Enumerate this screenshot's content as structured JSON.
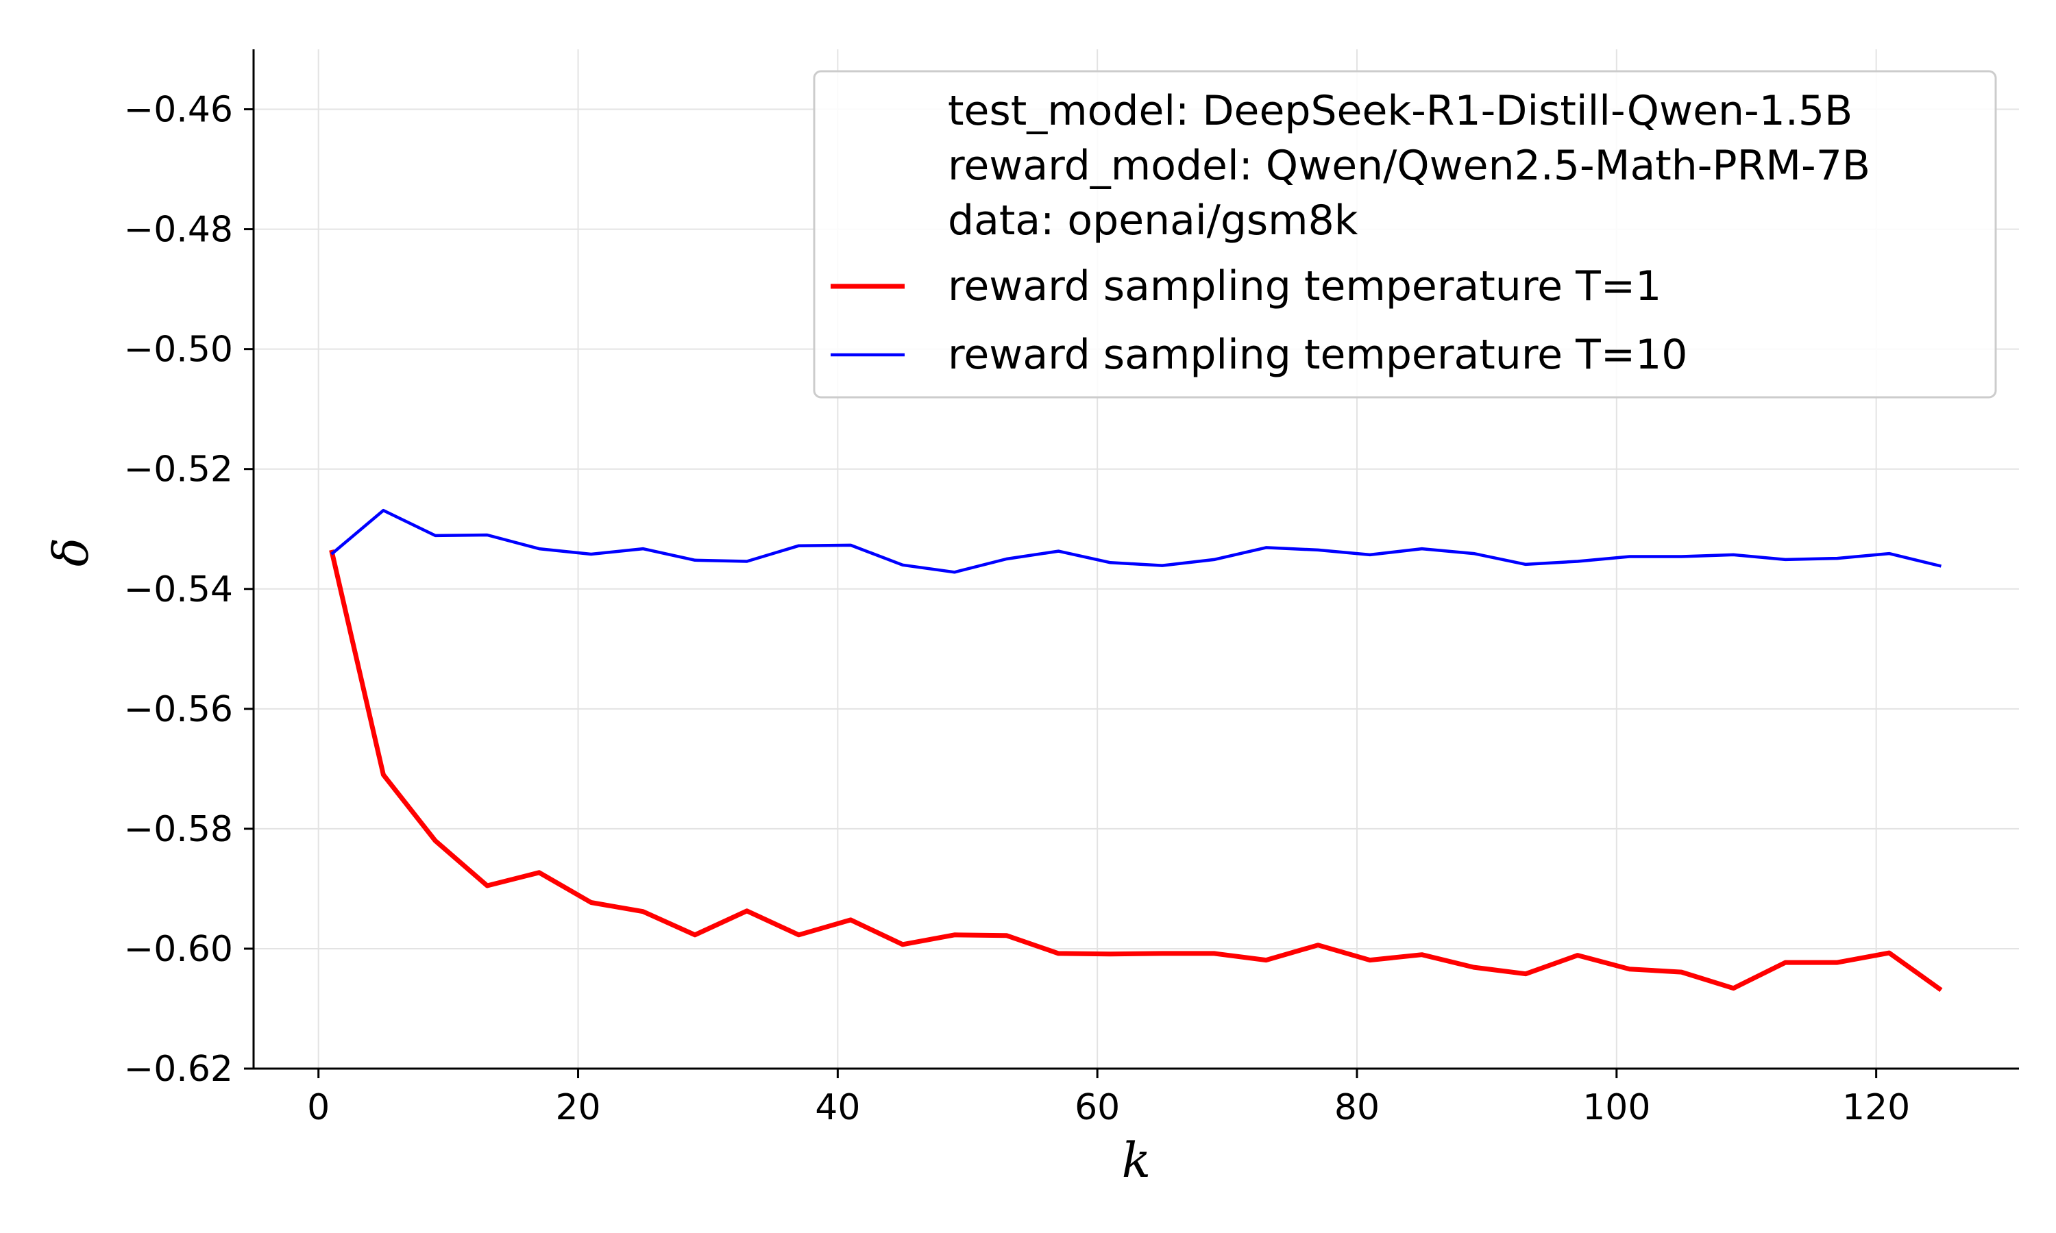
{
  "chart_data": {
    "type": "line",
    "title": "",
    "xlabel": "k",
    "ylabel": "δ",
    "xlim": [
      -5,
      131
    ],
    "ylim": [
      -0.62,
      -0.45
    ],
    "x_ticks": [
      0,
      20,
      40,
      60,
      80,
      100,
      120
    ],
    "y_ticks": [
      -0.62,
      -0.6,
      -0.58,
      -0.56,
      -0.54,
      -0.52,
      -0.5,
      -0.48,
      -0.46
    ],
    "x_tick_labels": [
      "0",
      "20",
      "40",
      "60",
      "80",
      "100",
      "120"
    ],
    "y_tick_labels": [
      "−0.62",
      "−0.60",
      "−0.58",
      "−0.56",
      "−0.54",
      "−0.52",
      "−0.50",
      "−0.48",
      "−0.46"
    ],
    "grid": true,
    "legend_position": "top-right",
    "legend_header": [
      "test_model: DeepSeek-R1-Distill-Qwen-1.5B",
      "reward_model: Qwen/Qwen2.5-Math-PRM-7B",
      "data: openai/gsm8k"
    ],
    "x": [
      1,
      5,
      9,
      13,
      17,
      21,
      25,
      29,
      33,
      37,
      41,
      45,
      49,
      53,
      57,
      61,
      65,
      69,
      73,
      77,
      81,
      85,
      89,
      93,
      97,
      101,
      105,
      109,
      113,
      117,
      121,
      125
    ],
    "series": [
      {
        "name": "reward sampling temperature T=1",
        "color": "#ff0000",
        "values": [
          -0.5335,
          -0.571,
          -0.582,
          -0.5895,
          -0.5873,
          -0.5923,
          -0.5938,
          -0.5977,
          -0.5937,
          -0.5977,
          -0.5952,
          -0.5993,
          -0.5977,
          -0.5978,
          -0.6008,
          -0.6009,
          -0.6008,
          -0.6008,
          -0.6019,
          -0.5994,
          -0.6019,
          -0.601,
          -0.6031,
          -0.6042,
          -0.6011,
          -0.6034,
          -0.6039,
          -0.6066,
          -0.6023,
          -0.6023,
          -0.6007,
          -0.6069
        ]
      },
      {
        "name": "reward sampling temperature T=10",
        "color": "#0000ff",
        "values": [
          -0.5342,
          -0.5269,
          -0.5311,
          -0.531,
          -0.5333,
          -0.5342,
          -0.5333,
          -0.5352,
          -0.5354,
          -0.5328,
          -0.5327,
          -0.536,
          -0.5372,
          -0.535,
          -0.5337,
          -0.5356,
          -0.5361,
          -0.5351,
          -0.5331,
          -0.5335,
          -0.5343,
          -0.5333,
          -0.5341,
          -0.5359,
          -0.5354,
          -0.5346,
          -0.5346,
          -0.5343,
          -0.5351,
          -0.5349,
          -0.5341,
          -0.5362
        ]
      }
    ]
  }
}
